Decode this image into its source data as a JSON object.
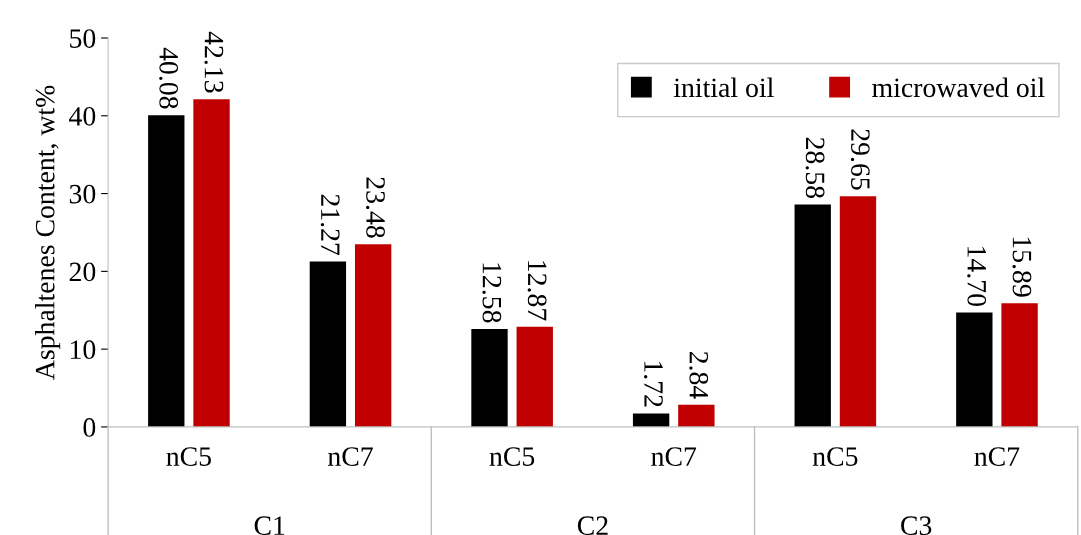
{
  "chart_data": {
    "type": "bar",
    "ylabel": "Asphaltenes Content, wt%",
    "categories": [
      "nC5",
      "nC7",
      "nC5",
      "nC7",
      "nC5",
      "nC7"
    ],
    "annotations": [
      "C1",
      "C2",
      "C3"
    ],
    "series": [
      {
        "name": "initial oil",
        "color": "#000000",
        "values": [
          40.08,
          21.27,
          12.58,
          1.72,
          28.58,
          14.7
        ],
        "value_labels": [
          "40.08",
          "21.27",
          "12.58",
          "1.72",
          "28.58",
          "14.70"
        ]
      },
      {
        "name": "microwaved oil",
        "color": "#c00000",
        "values": [
          42.13,
          23.48,
          12.87,
          2.84,
          29.65,
          15.89
        ],
        "value_labels": [
          "42.13",
          "23.48",
          "12.87",
          "2.84",
          "29.65",
          "15.89"
        ]
      }
    ],
    "ylim": [
      0,
      50
    ],
    "yticks": [
      0,
      10,
      20,
      30,
      40,
      50
    ],
    "grid": false,
    "legend": "top right"
  }
}
